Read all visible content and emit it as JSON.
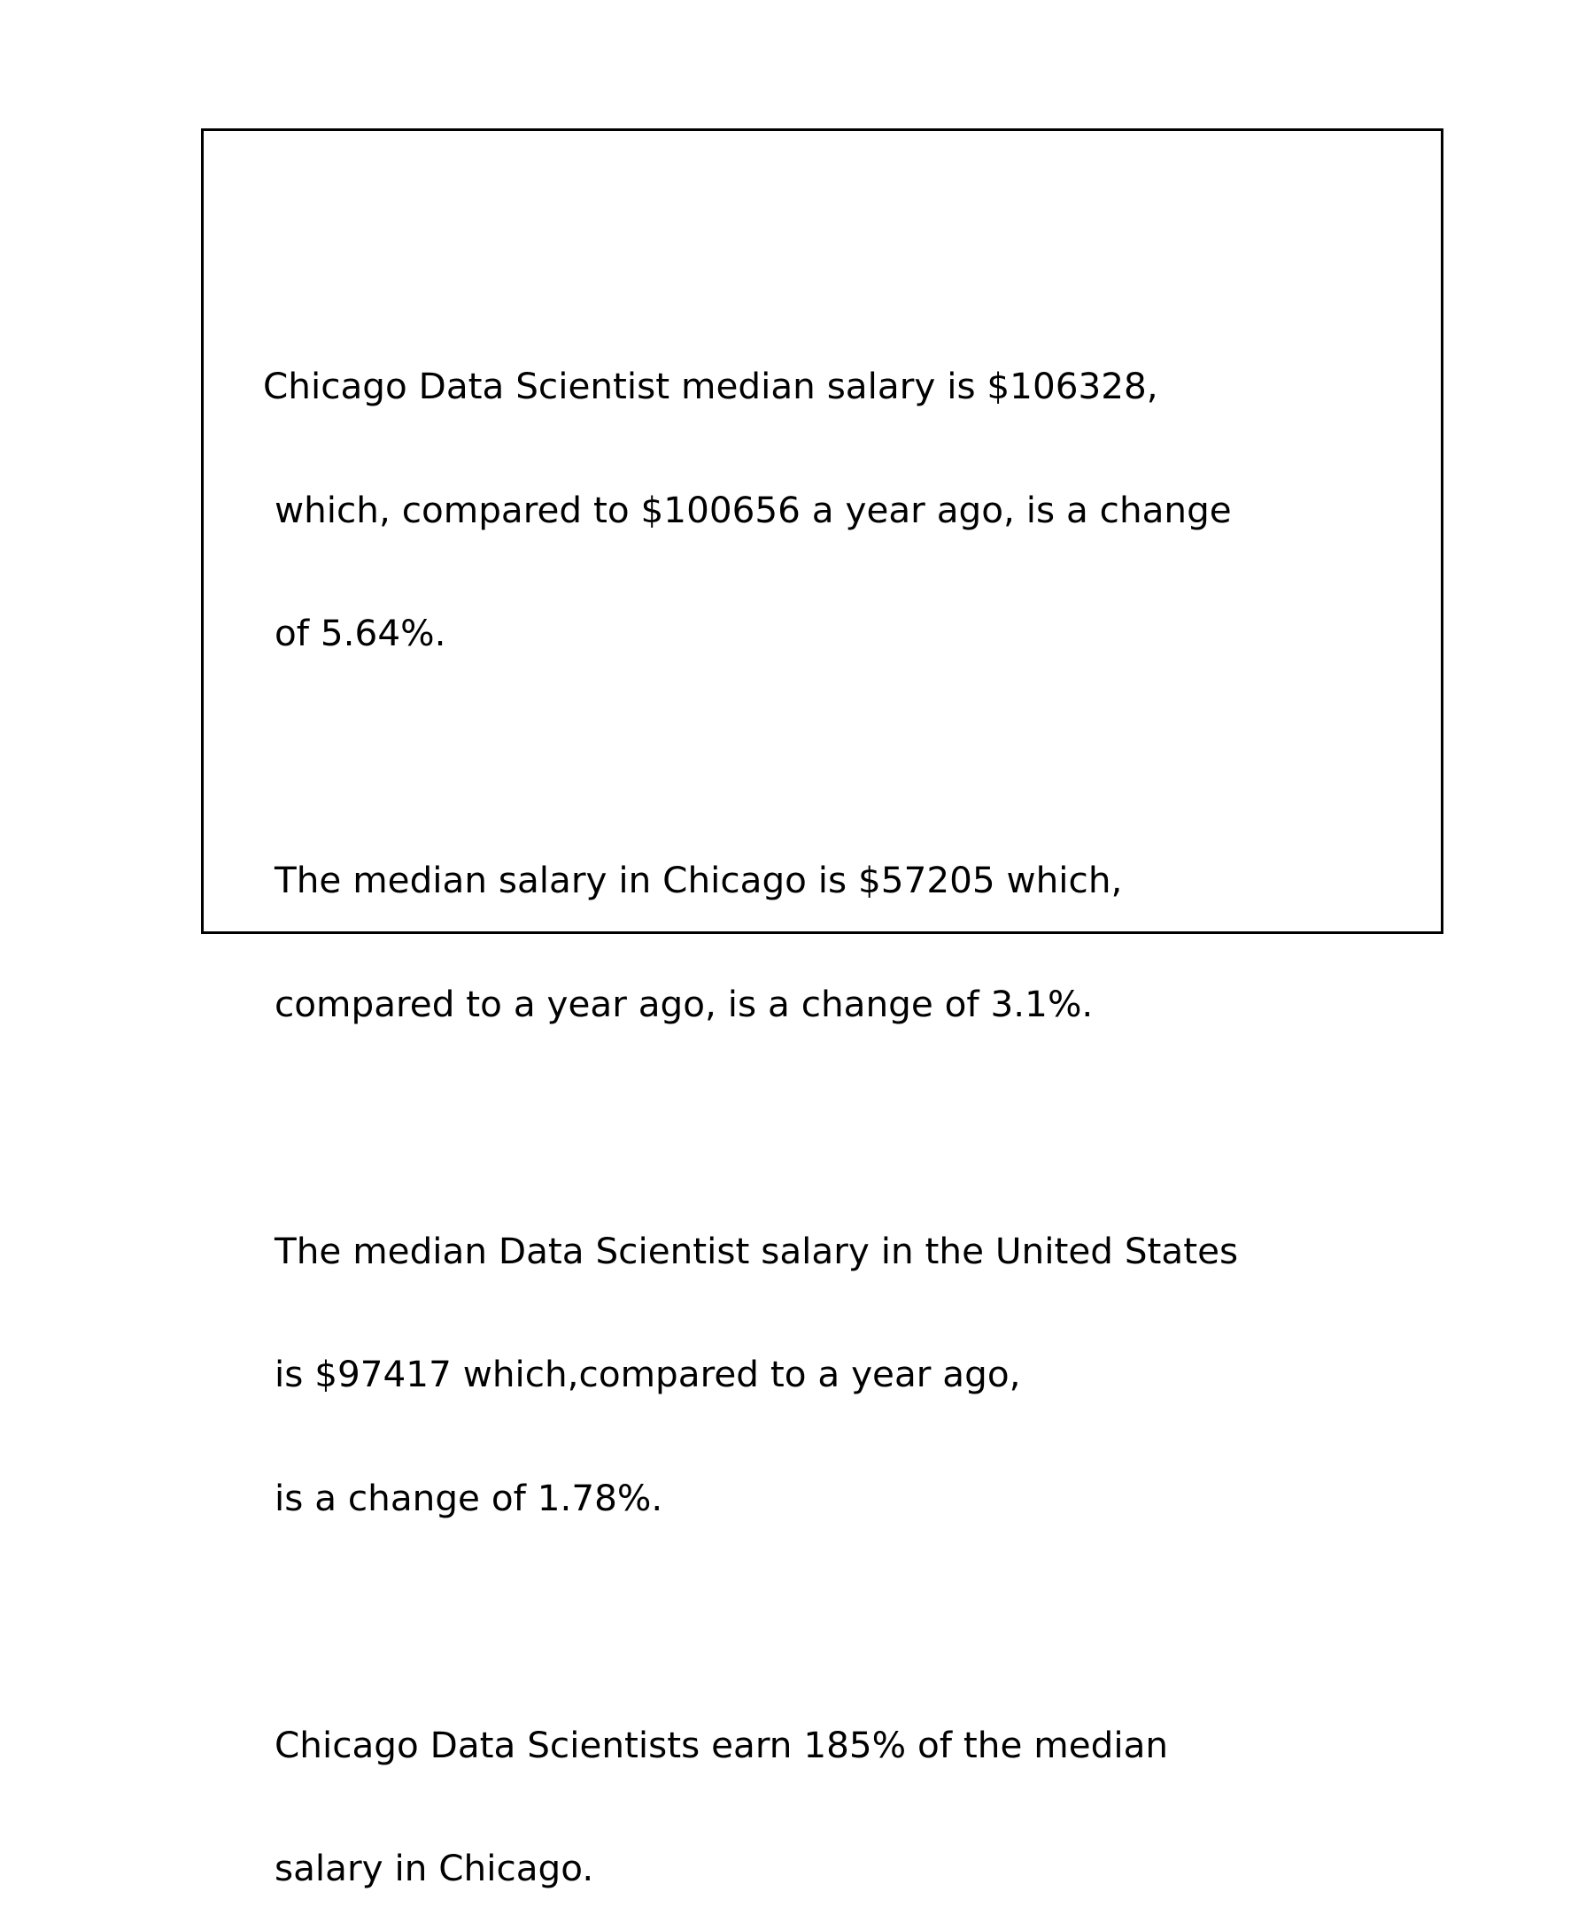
{
  "paragraphs": [
    {
      "lines": [
        "Chicago Data Scientist median salary is $106328,",
        "which, compared to $100656 a year ago, is a change",
        "of 5.64%."
      ]
    },
    {
      "lines": [
        "The median salary in Chicago is $57205 which,",
        "compared to a year ago, is a change of 3.1%."
      ]
    },
    {
      "lines": [
        "The median Data Scientist salary in the United States",
        "is $97417 which,compared to a year ago,",
        "is a change of 1.78%."
      ]
    },
    {
      "lines": [
        "Chicago Data Scientists earn 185% of the median",
        "salary in Chicago."
      ]
    }
  ]
}
